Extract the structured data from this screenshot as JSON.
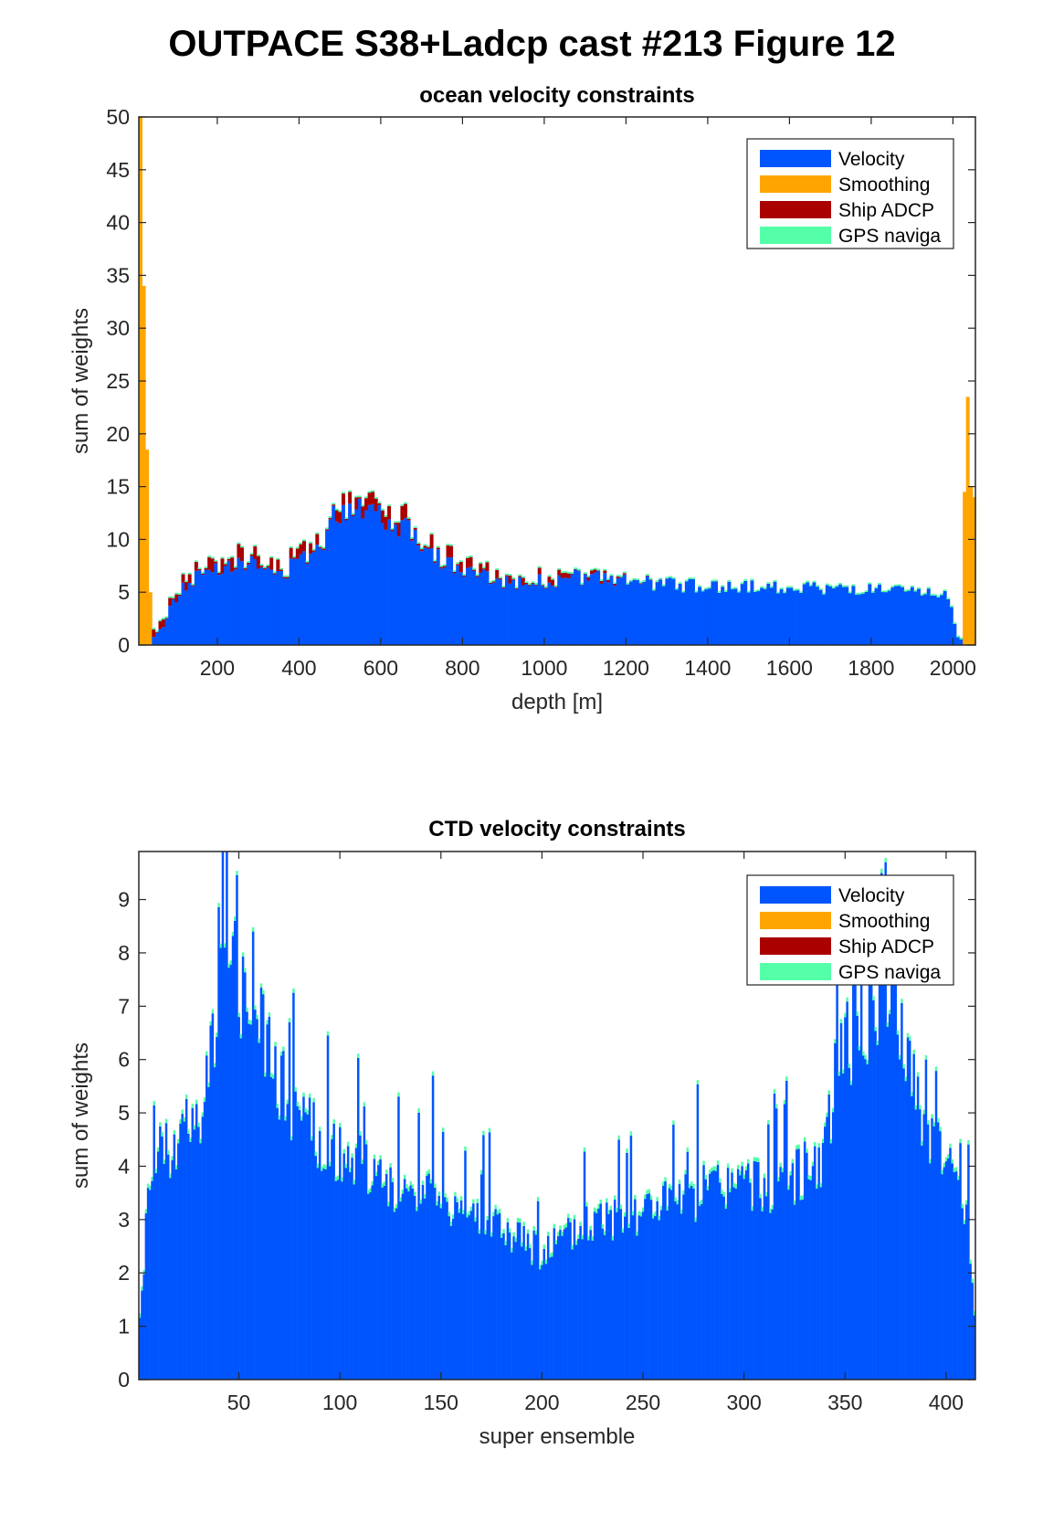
{
  "figure": {
    "title": "OUTPACE S38+Ladcp cast #213  Figure 12"
  },
  "colors": {
    "velocity": "#0055FF",
    "smoothing": "#FFA500",
    "ship_adcp": "#AA0000",
    "gps": "#55FFAA"
  },
  "chart_data": [
    {
      "type": "bar",
      "stacked": true,
      "title": "ocean velocity constraints",
      "xlabel": "depth [m]",
      "ylabel": "sum of weights",
      "xlim": [
        8,
        2055
      ],
      "ylim": [
        0,
        50
      ],
      "xticks": [
        200,
        400,
        600,
        800,
        1000,
        1200,
        1400,
        1600,
        1800,
        2000
      ],
      "yticks": [
        0,
        5,
        10,
        15,
        20,
        25,
        30,
        35,
        40,
        45,
        50
      ],
      "legend": {
        "position": "top-right",
        "entries": [
          "Velocity",
          "Smoothing",
          "Ship ADCP",
          "GPS naviga"
        ]
      },
      "bin_width": 8,
      "velocity_profile": [
        [
          8,
          0
        ],
        [
          30,
          0.3
        ],
        [
          45,
          0.8
        ],
        [
          70,
          2
        ],
        [
          90,
          4
        ],
        [
          120,
          5.5
        ],
        [
          150,
          6.5
        ],
        [
          200,
          7.5
        ],
        [
          250,
          8
        ],
        [
          300,
          7.5
        ],
        [
          350,
          6.5
        ],
        [
          400,
          8
        ],
        [
          450,
          9.5
        ],
        [
          500,
          13
        ],
        [
          550,
          13.5
        ],
        [
          600,
          12.5
        ],
        [
          650,
          11.5
        ],
        [
          700,
          10
        ],
        [
          750,
          8
        ],
        [
          800,
          7
        ],
        [
          900,
          6
        ],
        [
          1000,
          6
        ],
        [
          1100,
          6.5
        ],
        [
          1200,
          6
        ],
        [
          1400,
          5.5
        ],
        [
          1600,
          5.5
        ],
        [
          1800,
          5.2
        ],
        [
          1950,
          4.8
        ],
        [
          1990,
          4.8
        ],
        [
          2010,
          0.8
        ],
        [
          2030,
          0.3
        ],
        [
          2055,
          0.3
        ]
      ],
      "smoothing_spikes": [
        [
          8,
          30
        ],
        [
          14,
          50
        ],
        [
          22,
          34
        ],
        [
          30,
          18.5
        ],
        [
          38,
          5
        ],
        [
          2025,
          14.5
        ],
        [
          2033,
          23.5
        ],
        [
          2041,
          15
        ],
        [
          2049,
          14
        ]
      ],
      "ship_adcp_profile": [
        [
          50,
          0.6
        ],
        [
          150,
          0.7
        ],
        [
          200,
          1.2
        ],
        [
          300,
          1
        ],
        [
          400,
          0.8
        ],
        [
          500,
          0.9
        ],
        [
          600,
          1
        ],
        [
          700,
          1.2
        ],
        [
          800,
          0.8
        ],
        [
          1000,
          0.5
        ],
        [
          1100,
          0.3
        ],
        [
          1200,
          0.1
        ],
        [
          1300,
          0
        ]
      ],
      "gps_level": 0.15
    },
    {
      "type": "bar",
      "stacked": true,
      "title": "CTD velocity constraints",
      "xlabel": "super ensemble",
      "ylabel": "sum of weights",
      "xlim": [
        0.5,
        414.5
      ],
      "ylim": [
        0,
        9.9
      ],
      "xticks": [
        50,
        100,
        150,
        200,
        250,
        300,
        350,
        400
      ],
      "yticks": [
        0,
        1,
        2,
        3,
        4,
        5,
        6,
        7,
        8,
        9
      ],
      "legend": {
        "position": "top-right",
        "entries": [
          "Velocity",
          "Smoothing",
          "Ship ADCP",
          "GPS naviga"
        ]
      },
      "n_bins": 414,
      "velocity_profile": [
        [
          1,
          1.3
        ],
        [
          3,
          1.8
        ],
        [
          5,
          3.9
        ],
        [
          10,
          4.2
        ],
        [
          20,
          4.6
        ],
        [
          30,
          4.8
        ],
        [
          36,
          6
        ],
        [
          40,
          7.4
        ],
        [
          45,
          7.8
        ],
        [
          50,
          7.4
        ],
        [
          55,
          7
        ],
        [
          65,
          6
        ],
        [
          75,
          5.2
        ],
        [
          90,
          4.4
        ],
        [
          110,
          4
        ],
        [
          130,
          3.6
        ],
        [
          150,
          3.4
        ],
        [
          170,
          3
        ],
        [
          190,
          2.6
        ],
        [
          200,
          2.4
        ],
        [
          210,
          2.6
        ],
        [
          230,
          3
        ],
        [
          250,
          3.2
        ],
        [
          270,
          3.4
        ],
        [
          290,
          3.6
        ],
        [
          310,
          3.6
        ],
        [
          330,
          3.9
        ],
        [
          340,
          4.3
        ],
        [
          345,
          5.8
        ],
        [
          355,
          6.6
        ],
        [
          365,
          7.1
        ],
        [
          372,
          7.3
        ],
        [
          380,
          6.2
        ],
        [
          390,
          4.6
        ],
        [
          400,
          4
        ],
        [
          408,
          3.5
        ],
        [
          412,
          2.5
        ],
        [
          414,
          1.3
        ]
      ],
      "velocity_peaks": [
        [
          44,
          9.9
        ],
        [
          48,
          8.6
        ],
        [
          57,
          8.4
        ],
        [
          43,
          8.1
        ],
        [
          75,
          6.7
        ],
        [
          146,
          5.7
        ],
        [
          370,
          9.7
        ],
        [
          368,
          9.5
        ],
        [
          362,
          8
        ],
        [
          390,
          6
        ]
      ],
      "gps_level": 0.08
    }
  ]
}
